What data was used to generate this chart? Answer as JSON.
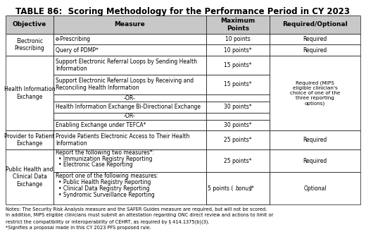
{
  "title": "TABLE 86:  Scoring Methodology for the Performance Period in CY 2023",
  "col_headers": [
    "Objective",
    "Measure",
    "Maximum\nPoints",
    "Required/Optional"
  ],
  "background_color": "#ffffff",
  "header_bg": "#c8c8c8",
  "border_color": "#333333",
  "font_size": 5.5,
  "header_font_size": 6.5,
  "title_fontsize": 8.5,
  "hie_required_text": "Required (MIPS\neligible clinician's\nchoice of one of the\nthree reporting\noptions)",
  "notes": "Notes: The Security Risk Analysis measure and the SAFER Guides measure are required, but will not be scored.\nIn addition, MIPS eligible clinicians must submit an attestation regarding ONC direct review and actions to limit or\nrestrict the compatibility or interoperability of CEHRT, as required by § 414.1375(b)(3).\n*Signifies a proposal made in this CY 2023 PFS proposed rule."
}
